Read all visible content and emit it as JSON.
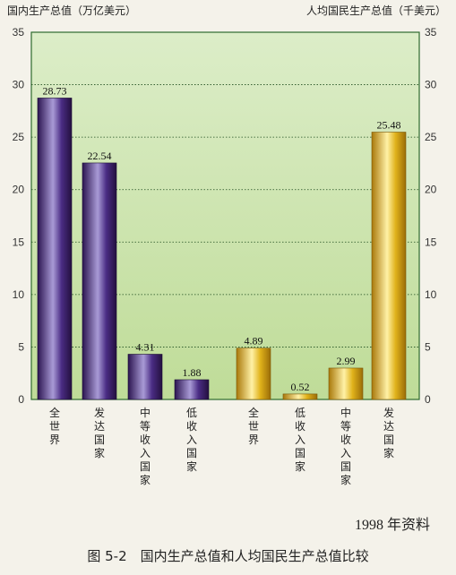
{
  "chart_data": {
    "type": "bar",
    "left_axis_label": "国内生产总值（万亿美元）",
    "right_axis_label": "人均国民生产总值（千美元）",
    "ylim": [
      0,
      35
    ],
    "yticks": [
      0,
      5,
      10,
      15,
      20,
      25,
      30,
      35
    ],
    "grid": true,
    "series": [
      {
        "axis": "left",
        "color": "#3a1f6b",
        "categories": [
          "全世界",
          "发达国家",
          "中等收入国家",
          "低收入国家"
        ],
        "values": [
          28.73,
          22.54,
          4.31,
          1.88
        ]
      },
      {
        "axis": "right",
        "color": "#d9a70f",
        "categories": [
          "全世界",
          "低收入国家",
          "中等收入国家",
          "发达国家"
        ],
        "values": [
          4.89,
          0.52,
          2.99,
          25.48
        ]
      }
    ]
  },
  "source_note": "1998 年资料",
  "caption": "图 5-2　国内生产总值和人均国民生产总值比较",
  "colors": {
    "plot_bg_top": "#d9ebc4",
    "plot_bg_bottom": "#c3e09f",
    "grid": "#1f4d1f",
    "frame": "#2e6b2e"
  }
}
